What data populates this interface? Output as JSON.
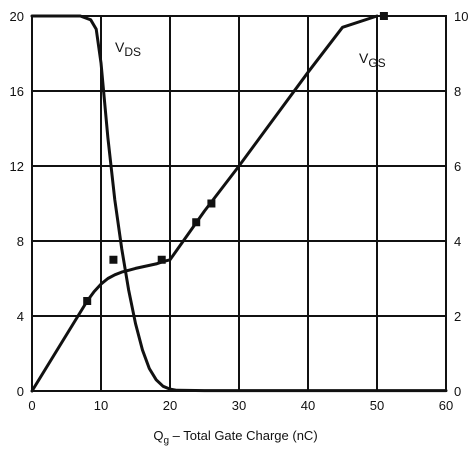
{
  "chart_data": {
    "type": "line",
    "xlabel": {
      "symbol": "Q",
      "subscript": "g",
      "text": " – Total Gate Charge (nC)"
    },
    "xlim": [
      0,
      60
    ],
    "ylim_left": [
      0,
      20
    ],
    "ylim_right": [
      0,
      10
    ],
    "x_ticks": [
      0,
      10,
      20,
      30,
      40,
      50,
      60
    ],
    "y_left_ticks": [
      0,
      4,
      8,
      12,
      16,
      20
    ],
    "y_right_ticks": [
      0,
      2,
      4,
      6,
      8,
      10
    ],
    "grid": true,
    "series": [
      {
        "name": "VDS",
        "label_main": "V",
        "label_sub": "DS",
        "axis": "left",
        "x": [
          0,
          7,
          8.5,
          9.3,
          10,
          11,
          12,
          13,
          14,
          15,
          16,
          17,
          18,
          19,
          20,
          21,
          25,
          60
        ],
        "values": [
          20,
          20,
          19.8,
          19.3,
          17.5,
          13.5,
          10.2,
          7.6,
          5.4,
          3.6,
          2.2,
          1.2,
          0.6,
          0.25,
          0.1,
          0.04,
          0.02,
          0.02
        ]
      },
      {
        "name": "VGS",
        "label_main": "V",
        "label_sub": "GS",
        "axis": "right",
        "x": [
          0,
          2,
          4,
          6,
          8,
          9,
          10,
          11,
          12,
          13,
          14,
          15,
          16,
          17,
          18,
          19,
          20,
          25,
          30,
          35,
          40,
          45,
          50
        ],
        "values": [
          0,
          0.6,
          1.2,
          1.8,
          2.4,
          2.65,
          2.85,
          3.0,
          3.1,
          3.17,
          3.22,
          3.27,
          3.31,
          3.35,
          3.39,
          3.45,
          3.5,
          4.8,
          6.0,
          7.25,
          8.5,
          9.7,
          10.0
        ]
      }
    ],
    "markers": {
      "axis": "left",
      "x": [
        8,
        11.8,
        18.8,
        23.8,
        26,
        51
      ],
      "values": [
        4.8,
        7,
        7,
        9,
        10,
        20
      ]
    }
  }
}
